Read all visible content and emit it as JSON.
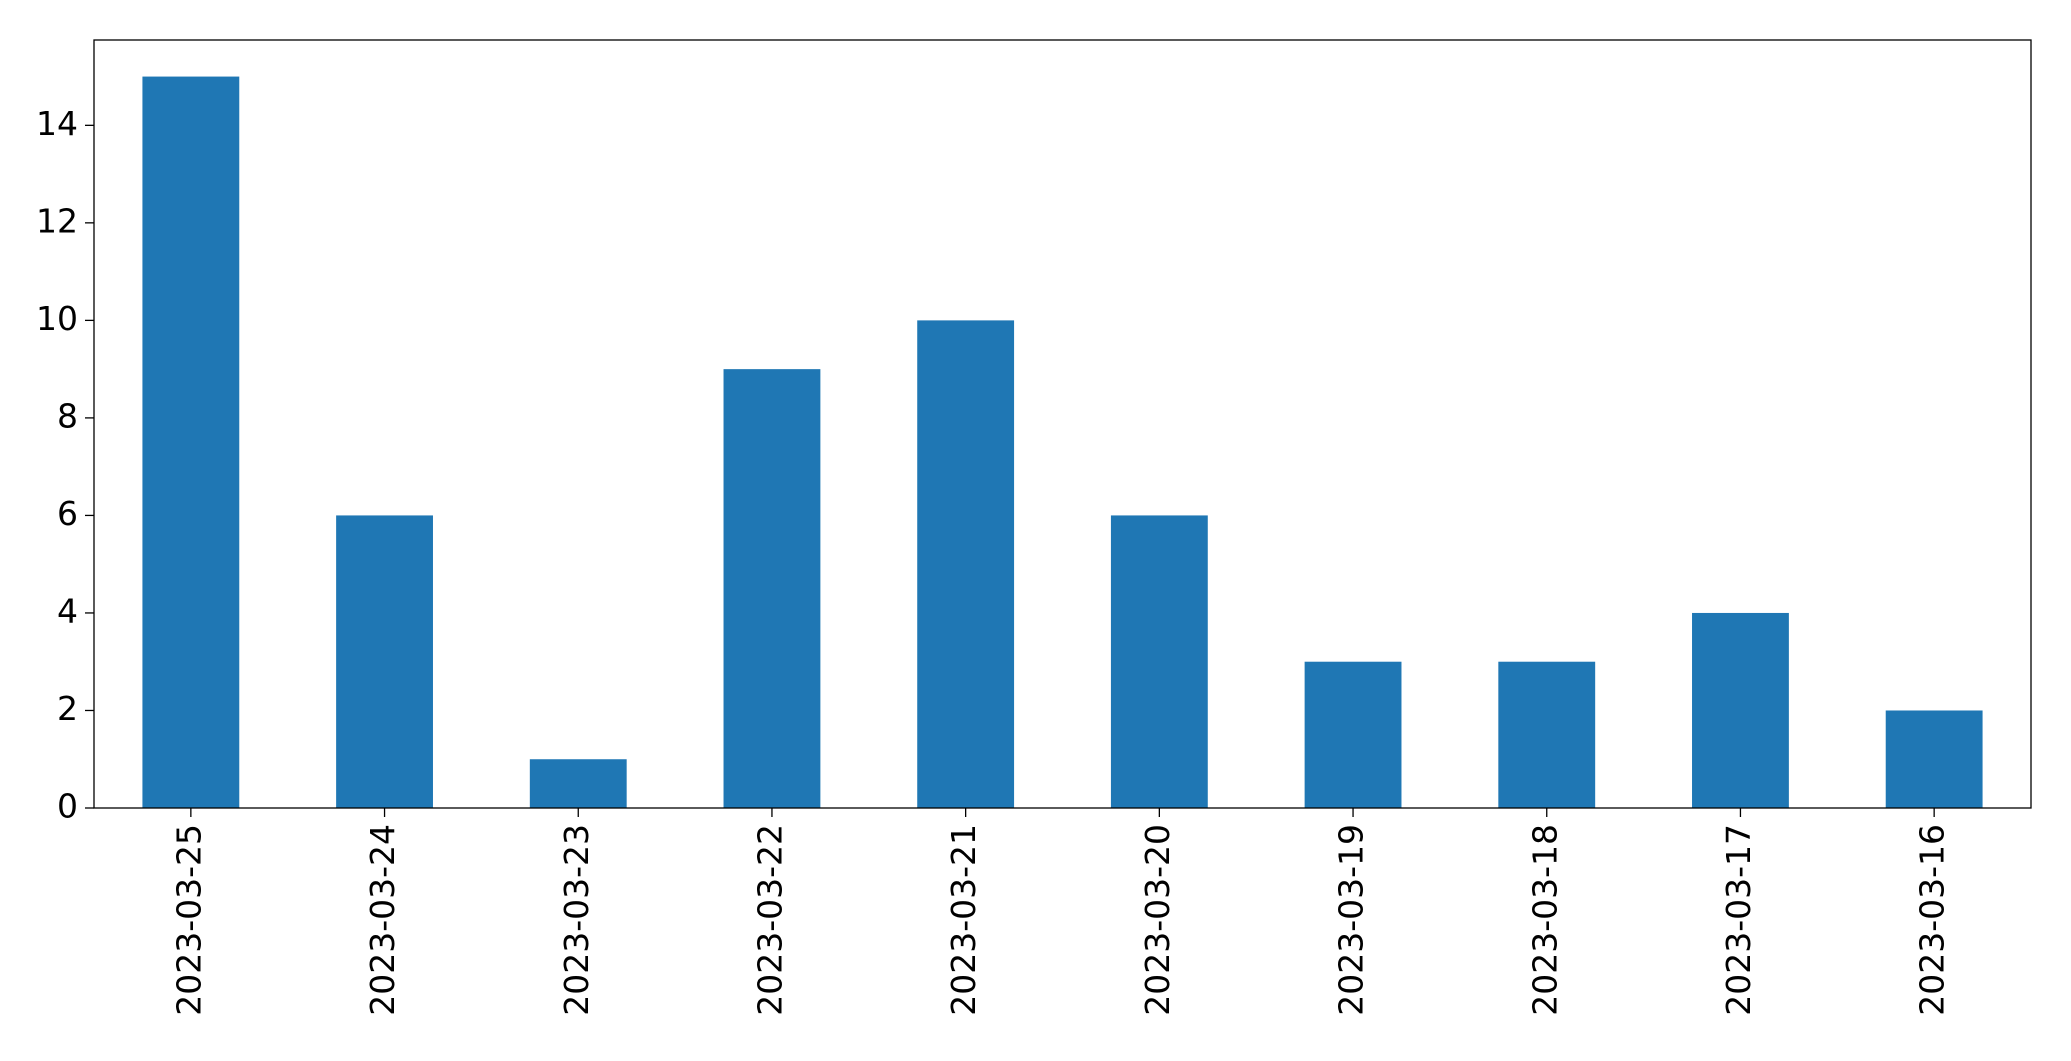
{
  "chart_data": {
    "type": "bar",
    "categories": [
      "2023-03-25",
      "2023-03-24",
      "2023-03-23",
      "2023-03-22",
      "2023-03-21",
      "2023-03-20",
      "2023-03-19",
      "2023-03-18",
      "2023-03-17",
      "2023-03-16"
    ],
    "values": [
      15,
      6,
      1,
      9,
      10,
      6,
      3,
      3,
      4,
      2
    ],
    "color": "#1f77b4",
    "ylim": [
      0,
      15.75
    ],
    "yticks": [
      0,
      2,
      4,
      6,
      8,
      10,
      12,
      14
    ],
    "grid": false
  }
}
